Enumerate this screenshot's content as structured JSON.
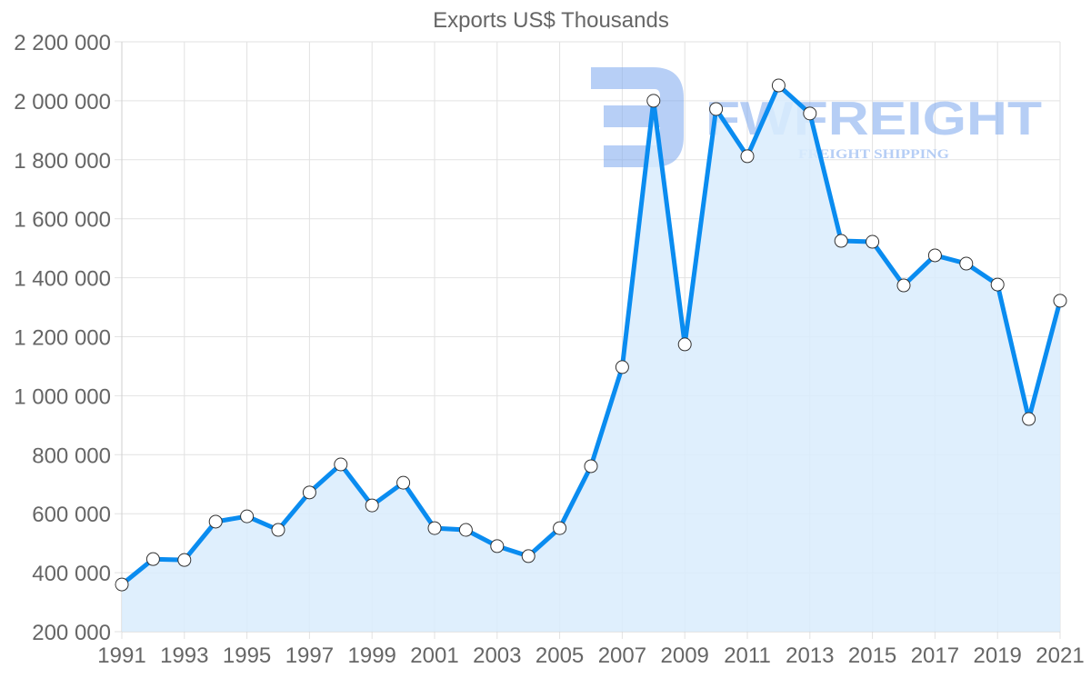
{
  "watermark": {
    "brand": "FWFREIGHT",
    "tagline": "FREIGHT SHIPPING",
    "color": "#7ba7ee"
  },
  "colors": {
    "line": "#0a8cf0",
    "fill": "#d9ecfd",
    "point_fill": "#ffffff",
    "point_stroke": "#333333",
    "text": "#666666",
    "grid": "#e2e2e2"
  },
  "chart_data": {
    "type": "area",
    "title": "Exports US$ Thousands",
    "xlabel": "",
    "ylabel": "",
    "x": [
      1991,
      1992,
      1993,
      1994,
      1995,
      1996,
      1997,
      1998,
      1999,
      2000,
      2001,
      2002,
      2003,
      2004,
      2005,
      2006,
      2007,
      2008,
      2009,
      2010,
      2011,
      2012,
      2013,
      2014,
      2015,
      2016,
      2017,
      2018,
      2019,
      2020,
      2021
    ],
    "series": [
      {
        "name": "Exports US$ Thousands",
        "values": [
          360000,
          446000,
          443000,
          573000,
          591000,
          545000,
          672000,
          767000,
          628000,
          705000,
          551000,
          545000,
          490000,
          456000,
          551000,
          761000,
          1097000,
          2000000,
          1174000,
          1972000,
          1812000,
          2052000,
          1957000,
          1525000,
          1522000,
          1374000,
          1476000,
          1448000,
          1377000,
          921000,
          1322000
        ]
      }
    ],
    "ylim": [
      200000,
      2200000
    ],
    "xlim": [
      1991,
      2021
    ],
    "y_ticks": [
      200000,
      400000,
      600000,
      800000,
      1000000,
      1200000,
      1400000,
      1600000,
      1800000,
      2000000,
      2200000
    ],
    "y_tick_labels": [
      "200 000",
      "400 000",
      "600 000",
      "800 000",
      "1 000 000",
      "1 200 000",
      "1 400 000",
      "1 600 000",
      "1 800 000",
      "2 000 000",
      "2 200 000"
    ],
    "x_tick_labels": [
      "1991",
      "1993",
      "1995",
      "1997",
      "1999",
      "2001",
      "2003",
      "2005",
      "2007",
      "2009",
      "2011",
      "2013",
      "2015",
      "2017",
      "2019",
      "2021"
    ],
    "grid": true,
    "legend": "none"
  }
}
